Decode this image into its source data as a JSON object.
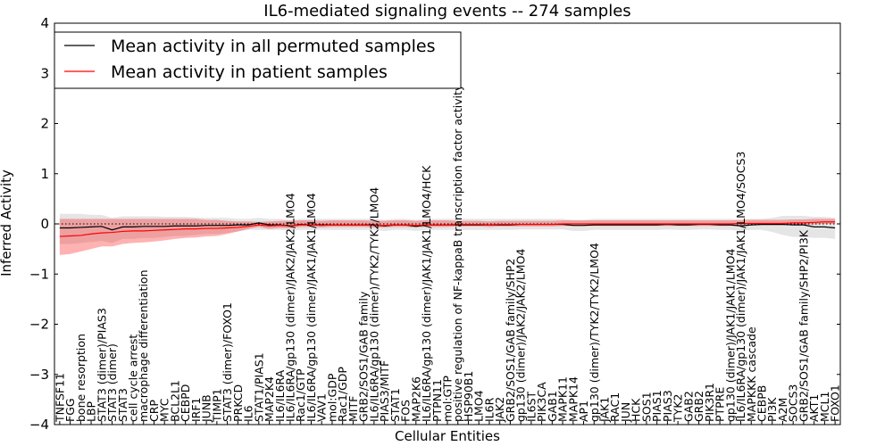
{
  "chart_data": {
    "type": "line",
    "title": "IL6-mediated signaling events -- 274 samples",
    "xlabel": "Cellular Entities",
    "ylabel": "Inferred Activity",
    "ylim": [
      -4,
      4
    ],
    "yticks": [
      -4,
      -3,
      -2,
      -1,
      0,
      1,
      2,
      3,
      4
    ],
    "ytick_labels": [
      "−4",
      "−3",
      "−2",
      "−1",
      "0",
      "1",
      "2",
      "3",
      "4"
    ],
    "legend": {
      "location": "top-left",
      "entries": [
        {
          "label": "Mean activity in all permuted samples",
          "color": "#000000"
        },
        {
          "label": "Mean activity in patient samples",
          "color": "#ff0000"
        }
      ]
    },
    "reference_line": 0,
    "categories": [
      "TNFSF11",
      "FGG",
      "bone resorption",
      "LBP",
      "STAT3 (dimer)/PIAS3",
      "STAT3 (dimer)",
      "STAT3",
      "cell cycle arrest",
      "macrophage differentiation",
      "CRP",
      "MYC",
      "BCL2L1",
      "CEBPD",
      "IRF1",
      "JUNB",
      "TIMP1",
      "STAT3 (dimer)/FOXO1",
      "PRKCD",
      "IL6",
      "STAT1/PIAS1",
      "MAP2K4",
      "IL6/IL6RA",
      "IL6/IL6RA/gp130 (dimer)/JAK2/JAK2/LMO4",
      "Rac1/GTP",
      "IL6/IL6RA/gp130 (dimer)/JAK1/JAK1/LMO4",
      "VAV1",
      "mol:GDP",
      "Rac1/GDP",
      "MITF",
      "GRB2/SOS1/GAB family",
      "IL6/IL6RA/gp130 (dimer)/TYK2/TYK2/LMO4",
      "PIAS3/MITF",
      "STAT1",
      "FOS",
      "MAP2K6",
      "IL6/IL6RA/gp130 (dimer)/JAK1/JAK1/LMO4/HCK",
      "PTPN11",
      "mol:GTP",
      "positive regulation of NF-kappaB transcription factor activity",
      "HSP90B1",
      "LMO4",
      "IL6R",
      "JAK2",
      "GRB2/SOS1/GAB family/SHP2",
      "gp130 (dimer)/JAK2/JAK2/LMO4",
      "IL6ST",
      "PIK3CA",
      "GAB1",
      "MAPK11",
      "MAPK14",
      "AP1",
      "gp130 (dimer)/TYK2/TYK2/LMO4",
      "JAK1",
      "RAC1",
      "JUN",
      "HCK",
      "SOS1",
      "PIAS1",
      "PIAS3",
      "TYK2",
      "GAB2",
      "GRB2",
      "PIK3R1",
      "PTPRE",
      "gp130 (dimer)/JAK1/JAK1/LMO4",
      "IL6/IL6RA/gp130 (dimer)/JAK1/JAK1/LMO4/SOCS3",
      "MAPKKK cascade",
      "CEBPB",
      "PI3K",
      "A2M",
      "SOCS3",
      "GRB2/SOS1/GAB family/SHP2/PI3K",
      "AKT1",
      "MCL1",
      "FOXO1"
    ],
    "series": [
      {
        "name": "Mean activity in all permuted samples",
        "color": "#000000",
        "values": [
          -0.08,
          -0.08,
          -0.07,
          -0.06,
          -0.05,
          -0.12,
          -0.06,
          -0.06,
          -0.05,
          -0.05,
          -0.05,
          -0.04,
          -0.04,
          -0.04,
          -0.03,
          -0.03,
          -0.03,
          -0.02,
          -0.02,
          0.02,
          -0.02,
          -0.02,
          -0.04,
          -0.01,
          -0.02,
          -0.02,
          -0.02,
          -0.02,
          -0.02,
          -0.02,
          -0.02,
          -0.04,
          -0.02,
          -0.02,
          -0.05,
          -0.02,
          -0.02,
          -0.02,
          -0.02,
          -0.02,
          -0.02,
          -0.02,
          -0.02,
          -0.02,
          -0.01,
          -0.01,
          -0.01,
          -0.01,
          -0.01,
          -0.03,
          -0.03,
          -0.02,
          -0.02,
          -0.02,
          -0.02,
          -0.02,
          -0.02,
          -0.02,
          -0.01,
          -0.02,
          -0.02,
          -0.01,
          -0.01,
          -0.02,
          -0.02,
          -0.04,
          -0.02,
          -0.01,
          -0.01,
          -0.01,
          -0.02,
          -0.02,
          -0.06,
          -0.06,
          -0.08
        ],
        "band_lower": [
          -0.4,
          -0.4,
          -0.38,
          -0.36,
          -0.34,
          -0.38,
          -0.3,
          -0.3,
          -0.28,
          -0.28,
          -0.26,
          -0.24,
          -0.24,
          -0.22,
          -0.2,
          -0.2,
          -0.18,
          -0.15,
          -0.12,
          -0.12,
          -0.12,
          -0.12,
          -0.14,
          -0.12,
          -0.12,
          -0.12,
          -0.12,
          -0.12,
          -0.12,
          -0.12,
          -0.12,
          -0.14,
          -0.12,
          -0.12,
          -0.14,
          -0.12,
          -0.12,
          -0.12,
          -0.12,
          -0.12,
          -0.12,
          -0.12,
          -0.12,
          -0.12,
          -0.11,
          -0.11,
          -0.11,
          -0.11,
          -0.11,
          -0.14,
          -0.14,
          -0.12,
          -0.12,
          -0.12,
          -0.12,
          -0.12,
          -0.12,
          -0.12,
          -0.11,
          -0.12,
          -0.12,
          -0.11,
          -0.11,
          -0.12,
          -0.12,
          -0.14,
          -0.12,
          -0.12,
          -0.16,
          -0.22,
          -0.26,
          -0.26,
          -0.28,
          -0.28,
          -0.3
        ],
        "band_upper": [
          0.2,
          0.2,
          0.2,
          0.18,
          0.18,
          0.12,
          0.15,
          0.15,
          0.15,
          0.15,
          0.14,
          0.14,
          0.14,
          0.13,
          0.12,
          0.12,
          0.12,
          0.1,
          0.1,
          0.12,
          0.1,
          0.1,
          0.08,
          0.1,
          0.1,
          0.1,
          0.1,
          0.1,
          0.1,
          0.1,
          0.1,
          0.08,
          0.1,
          0.1,
          0.08,
          0.1,
          0.1,
          0.1,
          0.1,
          0.1,
          0.1,
          0.1,
          0.1,
          0.1,
          0.1,
          0.1,
          0.1,
          0.1,
          0.1,
          0.08,
          0.08,
          0.1,
          0.1,
          0.1,
          0.1,
          0.1,
          0.1,
          0.1,
          0.1,
          0.1,
          0.1,
          0.1,
          0.1,
          0.1,
          0.1,
          0.08,
          0.1,
          0.1,
          0.12,
          0.16,
          0.16,
          0.16,
          0.14,
          0.14,
          0.12
        ]
      },
      {
        "name": "Mean activity in patient samples",
        "color": "#ff0000",
        "values": [
          -0.25,
          -0.24,
          -0.23,
          -0.2,
          -0.18,
          -0.17,
          -0.15,
          -0.14,
          -0.14,
          -0.13,
          -0.12,
          -0.11,
          -0.1,
          -0.1,
          -0.09,
          -0.09,
          -0.08,
          -0.07,
          -0.05,
          -0.02,
          -0.04,
          -0.03,
          -0.04,
          -0.02,
          -0.02,
          -0.03,
          -0.02,
          -0.02,
          -0.02,
          -0.02,
          -0.03,
          -0.03,
          -0.02,
          -0.02,
          -0.03,
          -0.02,
          -0.02,
          -0.02,
          -0.01,
          -0.01,
          -0.01,
          -0.02,
          -0.01,
          -0.01,
          -0.01,
          -0.01,
          -0.01,
          -0.01,
          0.0,
          0.0,
          0.0,
          0.0,
          0.0,
          0.0,
          0.0,
          0.0,
          0.0,
          0.0,
          0.0,
          0.0,
          0.0,
          0.0,
          0.0,
          0.0,
          0.0,
          0.01,
          0.01,
          0.01,
          0.01,
          0.01,
          0.02,
          0.02,
          0.03,
          0.04,
          0.04
        ],
        "band_lower": [
          -0.62,
          -0.6,
          -0.55,
          -0.5,
          -0.45,
          -0.45,
          -0.4,
          -0.38,
          -0.37,
          -0.35,
          -0.33,
          -0.3,
          -0.28,
          -0.27,
          -0.25,
          -0.24,
          -0.2,
          -0.15,
          -0.1,
          -0.06,
          -0.1,
          -0.08,
          -0.09,
          -0.06,
          -0.06,
          -0.07,
          -0.06,
          -0.06,
          -0.06,
          -0.06,
          -0.07,
          -0.07,
          -0.06,
          -0.06,
          -0.07,
          -0.06,
          -0.06,
          -0.06,
          -0.05,
          -0.05,
          -0.05,
          -0.06,
          -0.05,
          -0.05,
          -0.05,
          -0.05,
          -0.05,
          -0.05,
          -0.04,
          -0.04,
          -0.04,
          -0.04,
          -0.04,
          -0.04,
          -0.04,
          -0.04,
          -0.04,
          -0.04,
          -0.04,
          -0.04,
          -0.04,
          -0.04,
          -0.04,
          -0.04,
          -0.04,
          -0.03,
          -0.03,
          -0.03,
          -0.03,
          -0.03,
          -0.02,
          -0.02,
          -0.01,
          0.0,
          0.0
        ],
        "band_upper": [
          0.1,
          0.1,
          0.1,
          0.1,
          0.1,
          0.1,
          0.1,
          0.1,
          0.1,
          0.1,
          0.1,
          0.1,
          0.1,
          0.1,
          0.08,
          0.08,
          0.06,
          0.05,
          0.05,
          0.04,
          0.05,
          0.06,
          0.06,
          0.07,
          0.07,
          0.06,
          0.07,
          0.07,
          0.07,
          0.07,
          0.06,
          0.06,
          0.07,
          0.07,
          0.06,
          0.07,
          0.07,
          0.07,
          0.06,
          0.06,
          0.06,
          0.05,
          0.06,
          0.06,
          0.06,
          0.06,
          0.06,
          0.06,
          0.07,
          0.07,
          0.07,
          0.07,
          0.07,
          0.07,
          0.07,
          0.07,
          0.07,
          0.07,
          0.07,
          0.07,
          0.07,
          0.07,
          0.07,
          0.07,
          0.07,
          0.08,
          0.08,
          0.08,
          0.08,
          0.08,
          0.09,
          0.09,
          0.1,
          0.1,
          0.1
        ]
      }
    ]
  }
}
